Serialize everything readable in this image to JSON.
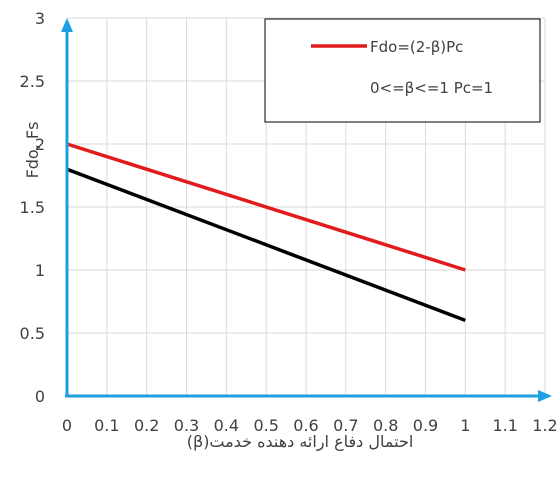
{
  "chart_data": {
    "type": "line",
    "xlabel": "احتمال دفاع ارائه دهنده خدمت(β)",
    "ylabel": "Fdo, Fs",
    "xlim": [
      0,
      1.2
    ],
    "ylim": [
      0,
      3
    ],
    "x_ticks": [
      "0",
      "0.1",
      "0.2",
      "0.3",
      "0.4",
      "0.5",
      "0.6",
      "0.7",
      "0.8",
      "0.9",
      "1",
      "1.1",
      "1.2"
    ],
    "y_ticks": [
      "0",
      "0.5",
      "1",
      "1.5",
      "2",
      "2.5",
      "3"
    ],
    "grid": true,
    "legend_position": "top-right",
    "legend": {
      "line1": "Fdo=(2-β)Pc",
      "line2": "0<=β<=1  Pc=1"
    },
    "series": [
      {
        "name": "Fdo=(2-β)Pc",
        "color": "#e31a1c",
        "x": [
          0,
          1
        ],
        "y": [
          2.0,
          1.0
        ]
      },
      {
        "color": "#000000",
        "x": [
          0,
          1
        ],
        "y": [
          1.8,
          0.6
        ]
      }
    ],
    "axis_color": "#1ba1e2",
    "grid_color": "#d9d9d9"
  }
}
